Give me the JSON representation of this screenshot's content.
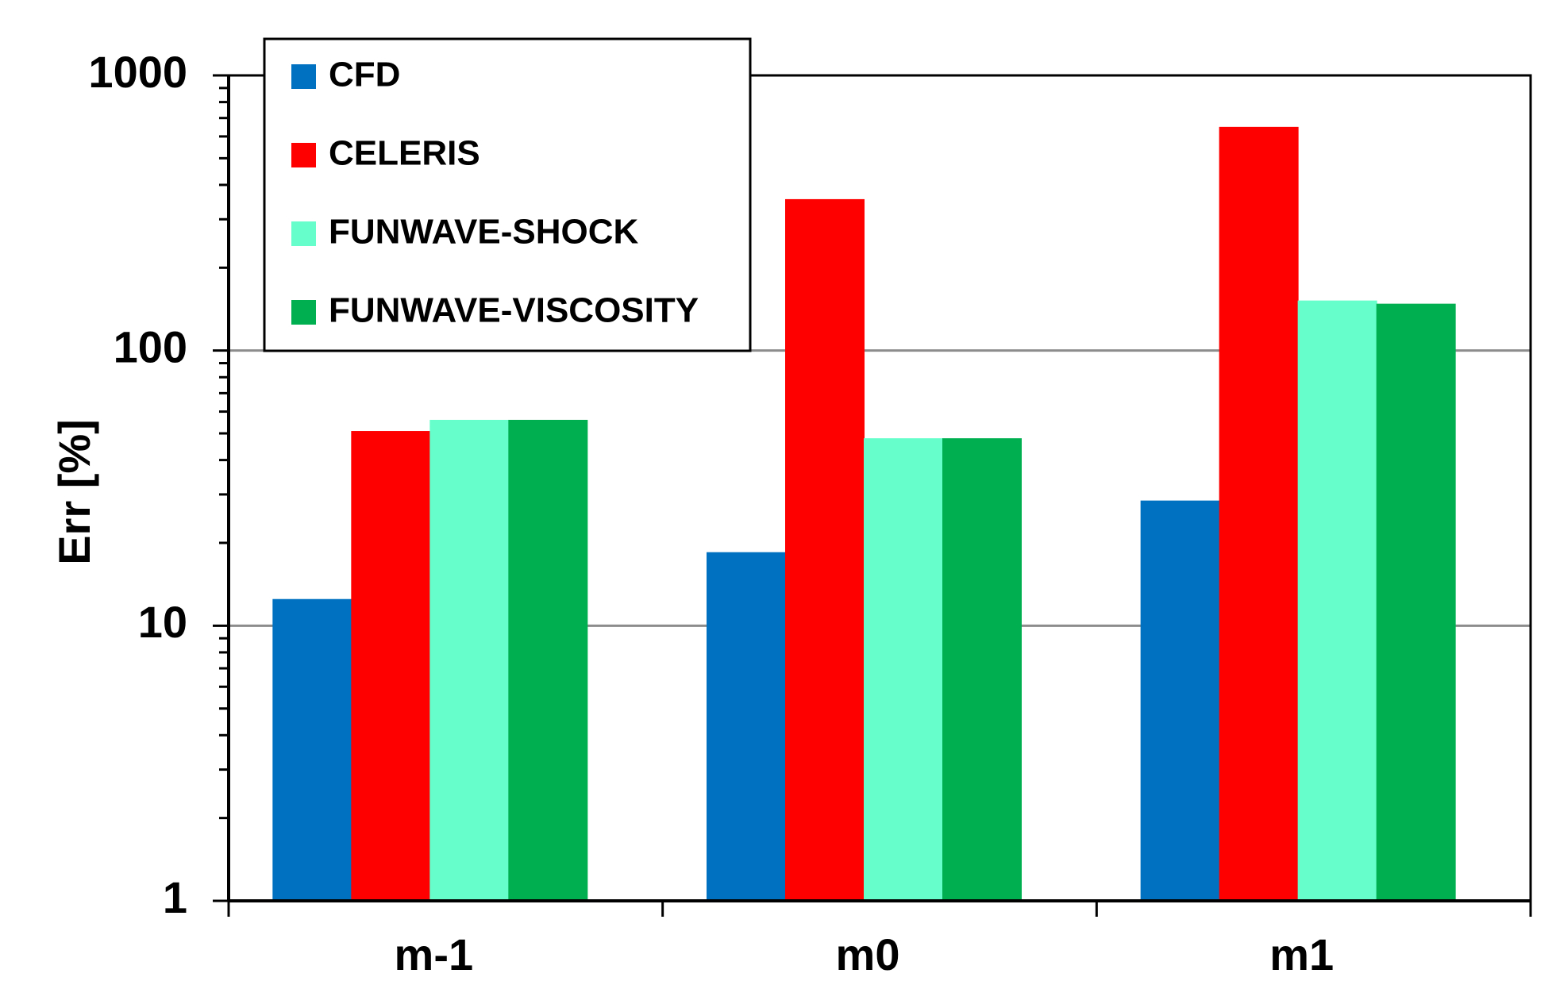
{
  "chart_data": {
    "type": "bar",
    "title": "",
    "xlabel": "",
    "ylabel": "Err [%]",
    "yscale": "log",
    "ylim": [
      1,
      1000
    ],
    "yticks": [
      {
        "value": 1,
        "label": "1"
      },
      {
        "value": 10,
        "label": "10"
      },
      {
        "value": 100,
        "label": "100"
      },
      {
        "value": 1000,
        "label": "1000"
      }
    ],
    "grid": "horizontal at decades",
    "legend_position": "top-left",
    "categories": [
      "m-1",
      "m0",
      "m1"
    ],
    "series": [
      {
        "name": "CFD",
        "color": "#0070C0",
        "values": [
          12.5,
          18.5,
          28.5
        ]
      },
      {
        "name": "CELERIS",
        "color": "#FF0000",
        "values": [
          51,
          355,
          650
        ]
      },
      {
        "name": "FUNWAVE-SHOCK",
        "color": "#66FFCC",
        "values": [
          56,
          48,
          152
        ]
      },
      {
        "name": "FUNWAVE-VISCOSITY",
        "color": "#00B050",
        "values": [
          56,
          48,
          148
        ]
      }
    ]
  }
}
